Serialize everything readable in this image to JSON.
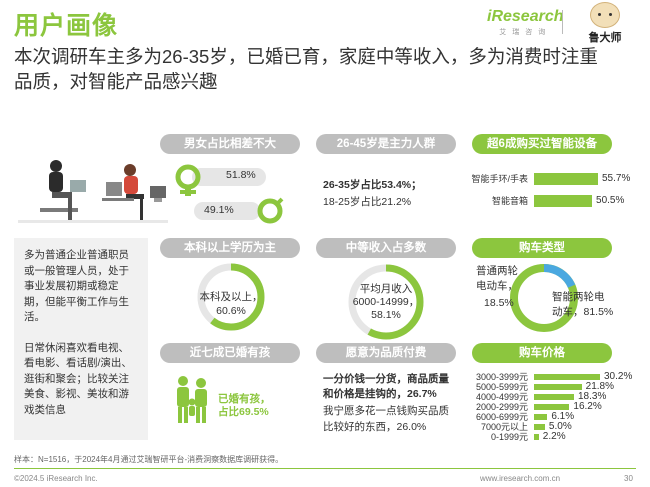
{
  "title": "用户画像",
  "headline": "本次调研车主多为26-35岁，已婚已育，家庭中等收入，多为消费时注重品质，对智能产品感兴趣",
  "brand": {
    "logo": "iResearch",
    "logo_sub": "艾瑞咨询",
    "partner": "鲁大师"
  },
  "gender": {
    "title": "男女占比相差不大",
    "female": "51.8%",
    "male": "49.1%",
    "female_pct": 51.8,
    "male_pct": 49.1
  },
  "age": {
    "title": "26-45岁是主力人群",
    "line1": "26-35岁占比53.4%；",
    "line2": "18-25岁占比21.2%"
  },
  "smart": {
    "title": "超6成购买过智能设备",
    "items": [
      {
        "label": "智能手环/手表",
        "value": "55.7%",
        "pct": 55.7
      },
      {
        "label": "智能音箱",
        "value": "50.5%",
        "pct": 50.5
      }
    ]
  },
  "education": {
    "title": "本科以上学历为主",
    "label": "本科及以上，",
    "value": "60.6%",
    "pct": 60.6
  },
  "income": {
    "title": "中等收入占多数",
    "line1": "平均月收入",
    "line2": "6000-14999，",
    "line3": "58.1%",
    "pct": 58.1
  },
  "cartype": {
    "title": "购车类型",
    "a_line1": "普通两轮",
    "a_line2": "电动车，",
    "a_line3": "18.5%",
    "b_line1": "智能两轮电",
    "b_line2": "动车，81.5%",
    "a_pct": 18.5,
    "b_pct": 81.5
  },
  "married": {
    "title": "近七成已婚有孩",
    "line1": "已婚有孩，",
    "line2": "占比69.5%",
    "pct": 69.5
  },
  "quality": {
    "title": "愿意为品质付费",
    "line1": "一分价钱一分货，商品质量",
    "line2": "和价格是挂钩的，26.7%",
    "line3": "我宁愿多花一点钱购买品质",
    "line4": "比较好的东西，26.0%"
  },
  "price": {
    "title": "购车价格",
    "rows": [
      {
        "label": "3000-3999元",
        "value": "30.2%",
        "pct": 30.2
      },
      {
        "label": "5000-5999元",
        "value": "21.8%",
        "pct": 21.8
      },
      {
        "label": "4000-4999元",
        "value": "18.3%",
        "pct": 18.3
      },
      {
        "label": "2000-2999元",
        "value": "16.2%",
        "pct": 16.2
      },
      {
        "label": "6000-6999元",
        "value": "6.1%",
        "pct": 6.1
      },
      {
        "label": "7000元以上",
        "value": "5.0%",
        "pct": 5.0
      },
      {
        "label": "0-1999元",
        "value": "2.2%",
        "pct": 2.2
      }
    ]
  },
  "description": {
    "p1": "多为普通企业普通职员或一般管理人员，处于事业发展初期或稳定期，但能平衡工作与生活。",
    "p2": "日常休闲喜欢看电视、看电影、看话剧/演出、逛街和聚会；比较关注美食、影视、美妆和游戏类信息"
  },
  "footnote": "样本：N=1516，于2024年4月通过艾瑞智研平台-消费洞察数据库调研获得。",
  "copyright": "©2024.5 iResearch Inc.",
  "site": "www.iresearch.com.cn",
  "page": "30",
  "colors": {
    "green": "#8cc63e",
    "gray": "#bebebe",
    "light": "#e6e6e6",
    "blue": "#4aa8e0"
  }
}
